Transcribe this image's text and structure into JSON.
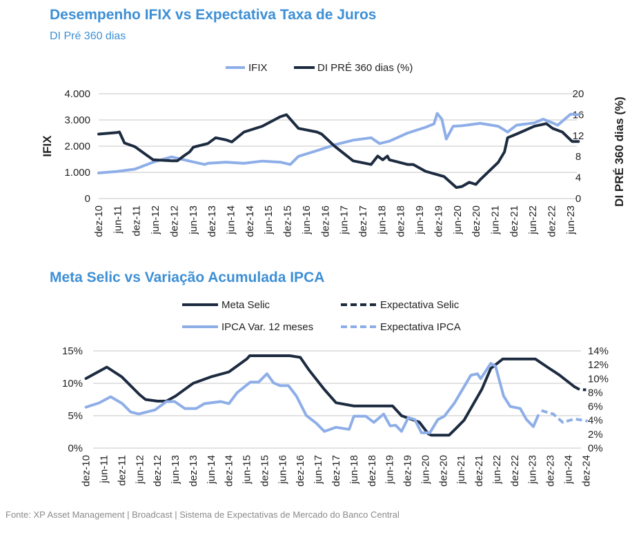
{
  "colors": {
    "title": "#3d8fd5",
    "navy": "#1c2b40",
    "light": "#8eaee8"
  },
  "footer": "Fonte: XP Asset Management | Broadcast | Sistema de Expectativas de Mercado do Banco Central",
  "chart_data": [
    {
      "type": "line",
      "title": "Desempenho IFIX vs Expectativa Taxa de Juros",
      "subtitle": "DI Pré 360 dias",
      "ylabel": "IFIX",
      "y2label": "DI PRÉ 360 dias (%)",
      "x_unit": "months since dez-10",
      "xlim": [
        0,
        152
      ],
      "ylim": [
        0,
        4000
      ],
      "y2lim": [
        0,
        20
      ],
      "yticks": [
        "0",
        "1.000",
        "2.000",
        "3.000",
        "4.000"
      ],
      "ytick_values": [
        0,
        1000,
        2000,
        3000,
        4000
      ],
      "y2ticks": [
        "0",
        "4",
        "8",
        "12",
        "16",
        "20"
      ],
      "y2tick_values": [
        0,
        4,
        8,
        12,
        16,
        20
      ],
      "xticks": [
        "dez-10",
        "jun-11",
        "dez-11",
        "jun-12",
        "dez-12",
        "jun-13",
        "dez-13",
        "jun-14",
        "dez-14",
        "jun-15",
        "dez-15",
        "jun-16",
        "dez-16",
        "jun-17",
        "dez-17",
        "jun-18",
        "dez-18",
        "jun-19",
        "dez-19",
        "jun-20",
        "dez-20",
        "jun-21",
        "dez-21",
        "jun-22",
        "dez-22",
        "jun-23"
      ],
      "grid": true,
      "legend": "top-center",
      "series": [
        {
          "name": "IFIX",
          "axis": "left",
          "style": "solid",
          "color": "#8eaee8",
          "points": [
            [
              0,
              975
            ],
            [
              5.8,
              1035
            ],
            [
              11.5,
              1120
            ],
            [
              17.3,
              1390
            ],
            [
              23.2,
              1590
            ],
            [
              28.9,
              1430
            ],
            [
              33.7,
              1300
            ],
            [
              34.7,
              1345
            ],
            [
              40.5,
              1390
            ],
            [
              46.2,
              1345
            ],
            [
              52,
              1430
            ],
            [
              57.7,
              1390
            ],
            [
              60.9,
              1300
            ],
            [
              63.5,
              1610
            ],
            [
              69.4,
              1830
            ],
            [
              75,
              2050
            ],
            [
              80.9,
              2230
            ],
            [
              86.6,
              2320
            ],
            [
              89.3,
              2100
            ],
            [
              92.4,
              2190
            ],
            [
              98.2,
              2500
            ],
            [
              103.9,
              2720
            ],
            [
              106.6,
              2850
            ],
            [
              107.6,
              3250
            ],
            [
              109.1,
              3030
            ],
            [
              110.5,
              2270
            ],
            [
              112.7,
              2760
            ],
            [
              115.5,
              2780
            ],
            [
              121.3,
              2870
            ],
            [
              127,
              2760
            ],
            [
              130,
              2540
            ],
            [
              132.8,
              2800
            ],
            [
              138.5,
              2890
            ],
            [
              141.3,
              3030
            ],
            [
              144.3,
              2890
            ],
            [
              145.9,
              2800
            ],
            [
              150,
              3220
            ],
            [
              152.5,
              3200
            ]
          ]
        },
        {
          "name": "DI PRÉ 360 dias (%)",
          "axis": "right",
          "style": "solid",
          "color": "#1c2b40",
          "points": [
            [
              0,
              12.3
            ],
            [
              5.8,
              12.6
            ],
            [
              6.6,
              12.7
            ],
            [
              8.2,
              10.6
            ],
            [
              11.5,
              9.9
            ],
            [
              17.3,
              7.4
            ],
            [
              23.2,
              7.2
            ],
            [
              25,
              7.2
            ],
            [
              27,
              8.1
            ],
            [
              28.9,
              8.9
            ],
            [
              30.1,
              9.8
            ],
            [
              34.7,
              10.5
            ],
            [
              37.2,
              11.6
            ],
            [
              40.5,
              11.2
            ],
            [
              42.3,
              10.8
            ],
            [
              46.2,
              12.7
            ],
            [
              52,
              13.8
            ],
            [
              57.7,
              15.6
            ],
            [
              59.7,
              16
            ],
            [
              63.5,
              13.4
            ],
            [
              69.4,
              12.7
            ],
            [
              70.9,
              12.3
            ],
            [
              75,
              10
            ],
            [
              80.9,
              7.2
            ],
            [
              86.6,
              6.5
            ],
            [
              88.7,
              8.1
            ],
            [
              90.3,
              7.4
            ],
            [
              91.8,
              8.1
            ],
            [
              92.4,
              7.4
            ],
            [
              98.2,
              6.5
            ],
            [
              100,
              6.5
            ],
            [
              103.9,
              5.2
            ],
            [
              109.8,
              4.2
            ],
            [
              113.7,
              2.1
            ],
            [
              115.5,
              2.3
            ],
            [
              117.8,
              3.1
            ],
            [
              119.9,
              2.7
            ],
            [
              121.3,
              3.6
            ],
            [
              127,
              6.9
            ],
            [
              129,
              8.9
            ],
            [
              130,
              11.6
            ],
            [
              132.8,
              12.3
            ],
            [
              138.5,
              13.8
            ],
            [
              142.3,
              14.3
            ],
            [
              144.3,
              13.4
            ],
            [
              147.4,
              12.7
            ],
            [
              150.5,
              10.9
            ],
            [
              152.5,
              10.9
            ]
          ]
        }
      ]
    },
    {
      "type": "line",
      "title": "Meta Selic vs Variação Acumulada IPCA",
      "x_unit": "months since dez-10",
      "xlim": [
        -2,
        170
      ],
      "ylim": [
        0,
        15
      ],
      "y2lim": [
        0,
        14
      ],
      "yticks": [
        "0%",
        "5%",
        "10%",
        "15%"
      ],
      "ytick_values": [
        0,
        5,
        10,
        15
      ],
      "y2ticks": [
        "0%",
        "2%",
        "4%",
        "6%",
        "8%",
        "10%",
        "12%",
        "14%"
      ],
      "y2tick_values": [
        0,
        2,
        4,
        6,
        8,
        10,
        12,
        14
      ],
      "xticks": [
        "dez-10",
        "jun-11",
        "dez-11",
        "jun-12",
        "dez-12",
        "jun-13",
        "dez-13",
        "jun-14",
        "dez-14",
        "jun-15",
        "dez-15",
        "jun-16",
        "dez-16",
        "jun-17",
        "dez-17",
        "jun-18",
        "dez-18",
        "jun-19",
        "dez-19",
        "jun-20",
        "dez-20",
        "jun-21",
        "dez-21",
        "jun-22",
        "dez-22",
        "jun-23",
        "dez-23",
        "jun-24",
        "dez-24"
      ],
      "grid": true,
      "legend": "top-center",
      "series": [
        {
          "name": "Meta Selic",
          "axis": "left",
          "style": "solid",
          "color": "#1c2b40",
          "points": [
            [
              0,
              10.75
            ],
            [
              6,
              12.25
            ],
            [
              7,
              12.5
            ],
            [
              12,
              11
            ],
            [
              18,
              8.25
            ],
            [
              20,
              7.5
            ],
            [
              24,
              7.25
            ],
            [
              27,
              7.25
            ],
            [
              30,
              8
            ],
            [
              36,
              10
            ],
            [
              42,
              11
            ],
            [
              48,
              11.75
            ],
            [
              54,
              13.75
            ],
            [
              55,
              14.25
            ],
            [
              68.5,
              14.25
            ],
            [
              72,
              14
            ],
            [
              75,
              12
            ],
            [
              80,
              9.1
            ],
            [
              84,
              7
            ],
            [
              90,
              6.5
            ],
            [
              103,
              6.5
            ],
            [
              106,
              5
            ],
            [
              112,
              4
            ],
            [
              115,
              2.2
            ],
            [
              116,
              2
            ],
            [
              122,
              2
            ],
            [
              124,
              2.9
            ],
            [
              127,
              4.3
            ],
            [
              133,
              9.1
            ],
            [
              136,
              12.3
            ],
            [
              140,
              13.75
            ],
            [
              151,
              13.75
            ],
            [
              155,
              12.5
            ],
            [
              159,
              11.3
            ],
            [
              164,
              9.5
            ]
          ]
        },
        {
          "name": "Expectativa Selic",
          "axis": "left",
          "style": "dashed",
          "color": "#1c2b40",
          "points": [
            [
              164,
              9.5
            ],
            [
              166,
              9
            ],
            [
              168,
              9
            ]
          ]
        },
        {
          "name": "IPCA Var. 12 meses",
          "axis": "right",
          "style": "solid",
          "color": "#8eaee8",
          "points": [
            [
              0,
              5.9
            ],
            [
              4.4,
              6.5
            ],
            [
              8.3,
              7.4
            ],
            [
              12.2,
              6.4
            ],
            [
              15,
              5.2
            ],
            [
              17.7,
              4.9
            ],
            [
              23.2,
              5.5
            ],
            [
              27,
              6.7
            ],
            [
              29.8,
              6.7
            ],
            [
              33.2,
              5.7
            ],
            [
              37,
              5.7
            ],
            [
              39.8,
              6.4
            ],
            [
              45.3,
              6.7
            ],
            [
              48,
              6.4
            ],
            [
              50.8,
              8
            ],
            [
              55.2,
              9.5
            ],
            [
              58,
              9.5
            ],
            [
              60.8,
              10.7
            ],
            [
              63,
              9.4
            ],
            [
              65.2,
              9
            ],
            [
              68,
              9
            ],
            [
              70.7,
              7.5
            ],
            [
              74,
              4.7
            ],
            [
              77.3,
              3.6
            ],
            [
              80.1,
              2.4
            ],
            [
              84,
              3
            ],
            [
              88.4,
              2.7
            ],
            [
              90,
              4.6
            ],
            [
              94,
              4.6
            ],
            [
              96.7,
              3.7
            ],
            [
              100,
              4.9
            ],
            [
              102.2,
              3.2
            ],
            [
              104,
              3.3
            ],
            [
              106,
              2.4
            ],
            [
              108.3,
              4.4
            ],
            [
              110.5,
              4.1
            ],
            [
              112.7,
              2.2
            ],
            [
              115.5,
              2.2
            ],
            [
              118.2,
              4.1
            ],
            [
              120.4,
              4.6
            ],
            [
              123.8,
              6.5
            ],
            [
              129.3,
              10.5
            ],
            [
              131.5,
              10.7
            ],
            [
              132.6,
              10
            ],
            [
              136,
              12.2
            ],
            [
              137.6,
              11.8
            ],
            [
              140.3,
              7.5
            ],
            [
              142.5,
              6
            ],
            [
              145.9,
              5.7
            ],
            [
              148,
              4.1
            ],
            [
              150.3,
              3.1
            ],
            [
              151.9,
              4.7
            ]
          ]
        },
        {
          "name": "Expectativa IPCA",
          "axis": "right",
          "style": "dashed",
          "color": "#8eaee8",
          "points": [
            [
              153,
              5.4
            ],
            [
              157,
              4.9
            ],
            [
              160.2,
              3.7
            ],
            [
              164.1,
              4.2
            ],
            [
              168.5,
              3.9
            ]
          ]
        }
      ]
    }
  ]
}
